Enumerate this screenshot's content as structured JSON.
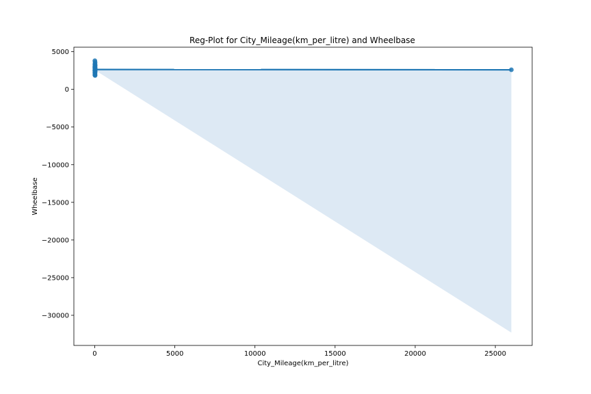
{
  "chart_data": {
    "type": "scatter",
    "title": "Reg-Plot for City_Mileage(km_per_litre) and Wheelbase",
    "xlabel": "City_Mileage(km_per_litre)",
    "ylabel": "Wheelbase",
    "xlim": [
      -1300,
      27300
    ],
    "ylim": [
      -34000,
      5600
    ],
    "xticks": [
      0,
      5000,
      10000,
      15000,
      20000,
      25000
    ],
    "yticks": [
      5000,
      0,
      -5000,
      -10000,
      -15000,
      -20000,
      -25000,
      -30000
    ],
    "xtick_labels": [
      "0",
      "5000",
      "10000",
      "15000",
      "20000",
      "25000"
    ],
    "ytick_labels": [
      "5000",
      "0",
      "−5000",
      "−10000",
      "−15000",
      "−20000",
      "−25000",
      "−30000"
    ],
    "grid": false,
    "colors": {
      "points": "#1f77b4",
      "line": "#1f77b4",
      "band": "#dde9f4"
    },
    "points": [
      {
        "x": 10,
        "y": 3800
      },
      {
        "x": 25,
        "y": 3600
      },
      {
        "x": 18,
        "y": 3400
      },
      {
        "x": 12,
        "y": 3300
      },
      {
        "x": 30,
        "y": 3200
      },
      {
        "x": 15,
        "y": 3100
      },
      {
        "x": 20,
        "y": 3000
      },
      {
        "x": 8,
        "y": 2950
      },
      {
        "x": 22,
        "y": 2900
      },
      {
        "x": 14,
        "y": 2850
      },
      {
        "x": 28,
        "y": 2800
      },
      {
        "x": 11,
        "y": 2750
      },
      {
        "x": 19,
        "y": 2700
      },
      {
        "x": 24,
        "y": 2650
      },
      {
        "x": 16,
        "y": 2600
      },
      {
        "x": 9,
        "y": 2550
      },
      {
        "x": 21,
        "y": 2500
      },
      {
        "x": 13,
        "y": 2450
      },
      {
        "x": 26,
        "y": 2400
      },
      {
        "x": 17,
        "y": 2350
      },
      {
        "x": 23,
        "y": 2300
      },
      {
        "x": 10,
        "y": 2250
      },
      {
        "x": 20,
        "y": 2200
      },
      {
        "x": 15,
        "y": 2100
      },
      {
        "x": 18,
        "y": 2000
      },
      {
        "x": 12,
        "y": 1900
      },
      {
        "x": 25,
        "y": 1850
      },
      {
        "x": 26000,
        "y": 2600
      }
    ],
    "regression": {
      "x": [
        0,
        26000
      ],
      "y": [
        2640,
        2600
      ]
    },
    "ci_band": {
      "x": [
        0,
        26000
      ],
      "upper": [
        2700,
        2600
      ],
      "lower": [
        2580,
        -32300
      ]
    }
  }
}
